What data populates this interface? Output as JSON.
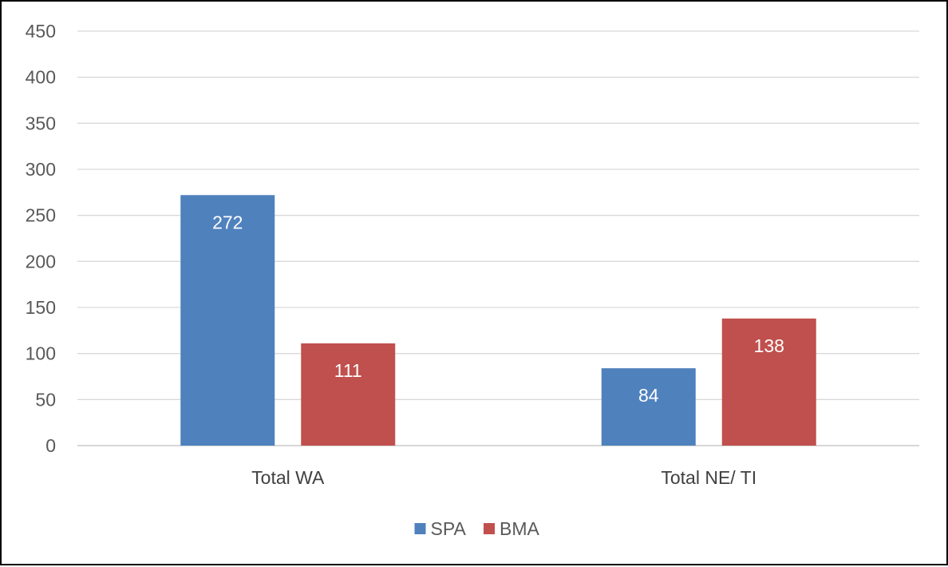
{
  "chart_data": {
    "type": "bar",
    "categories": [
      "Total WA",
      "Total NE/ TI"
    ],
    "series": [
      {
        "name": "SPA",
        "values": [
          272,
          84
        ],
        "color": "#4F81BD"
      },
      {
        "name": "BMA",
        "values": [
          111,
          138
        ],
        "color": "#C0504D"
      }
    ],
    "ylim": [
      0,
      450
    ],
    "ytick_step": 50,
    "grid": true,
    "legend_position": "bottom",
    "data_labels": true,
    "title": "",
    "xlabel": "",
    "ylabel": ""
  }
}
